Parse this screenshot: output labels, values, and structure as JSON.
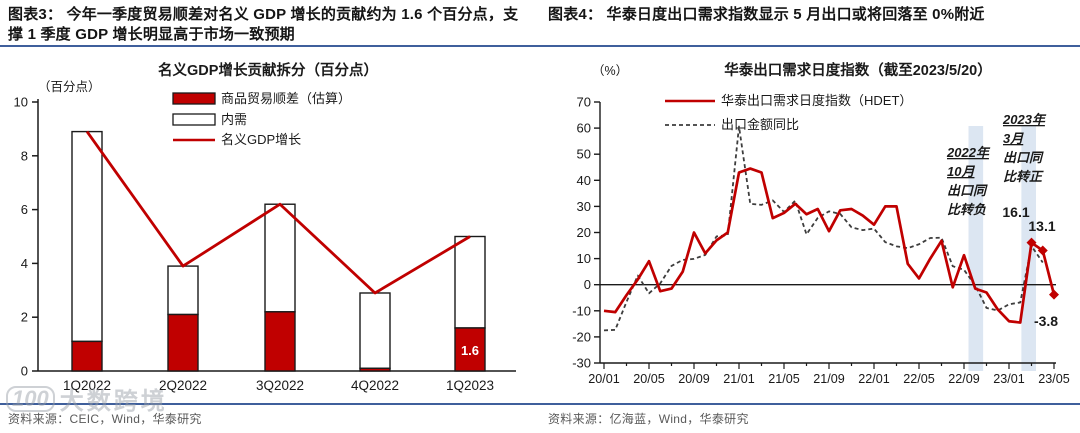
{
  "figure3": {
    "caption": "图表3：  今年一季度贸易顺差对名义 GDP 增长的贡献约为 1.6 个百分点，支撑 1 季度 GDP 增长明显高于市场一致预期",
    "source": "资料来源：CEIC，Wind，华泰研究"
  },
  "figure4": {
    "caption": "图表4：  华泰日度出口需求指数显示 5 月出口或将回落至 0%附近",
    "source": "资料来源：亿海蓝，Wind，华泰研究"
  },
  "watermark": {
    "logo": "100",
    "text": "大数跨境"
  },
  "colors": {
    "accent_red": "#c00000",
    "dark_red_label": "#a0342c",
    "rule_blue": "#3f5f9c",
    "band_blue": "#dce6f2",
    "dash_gray": "#3d3d3d",
    "axis_black": "#1a1a1a",
    "source_gray": "#5a5a5a"
  },
  "chart_data": [
    {
      "type": "bar",
      "stacked": true,
      "title": "名义GDP增长贡献拆分（百分点）",
      "unit_label": "（百分点）",
      "categories": [
        "1Q2022",
        "2Q2022",
        "3Q2022",
        "4Q2022",
        "1Q2023"
      ],
      "series": [
        {
          "name": "商品贸易顺差（估算）",
          "kind": "bar",
          "color": "#c00000",
          "values": [
            1.1,
            2.1,
            2.2,
            0.1,
            1.6
          ]
        },
        {
          "name": "内需",
          "kind": "bar",
          "color": "#ffffff",
          "values": [
            7.8,
            1.8,
            4.0,
            2.8,
            3.4
          ]
        },
        {
          "name": "名义GDP增长",
          "kind": "line",
          "color": "#c00000",
          "values": [
            8.9,
            3.9,
            6.2,
            2.9,
            5.0
          ]
        }
      ],
      "ylim": [
        0,
        10
      ],
      "yticks": [
        0,
        2,
        4,
        6,
        8,
        10
      ],
      "grid": false,
      "legend_position": "top",
      "bar_label": {
        "text": "1.6",
        "category_index": 4
      }
    },
    {
      "type": "line",
      "title": "华泰出口需求日度指数（截至2023/5/20）",
      "unit_label": "（%）",
      "x_start": "20/01",
      "x_end": "23/05",
      "x_ticks": [
        "20/01",
        "20/05",
        "20/09",
        "21/01",
        "21/05",
        "21/09",
        "22/01",
        "22/05",
        "22/09",
        "23/01",
        "23/05"
      ],
      "ylim": [
        -30,
        70
      ],
      "yticks": [
        70,
        60,
        50,
        40,
        30,
        20,
        10,
        0,
        -10,
        -20,
        -30
      ],
      "grid": false,
      "legend_position": "top",
      "series": [
        {
          "name": "华泰出口需求日度指数（HDET）",
          "kind": "line",
          "color": "#c00000",
          "marker_month_indexes": [
            38,
            39,
            40
          ],
          "values": [
            -10,
            -10.5,
            -4,
            2,
            9,
            -2.5,
            -1.5,
            5,
            20,
            12,
            17,
            20,
            43,
            44.5,
            43,
            25.5,
            27.5,
            31,
            27,
            29,
            20.5,
            28.5,
            29,
            26.5,
            23,
            30,
            30,
            8,
            2.4,
            10,
            16.8,
            -1,
            11.3,
            -1.5,
            -3,
            -9.5,
            -14,
            -14.5,
            16.1,
            13.1,
            -3.8
          ]
        },
        {
          "name": "出口金额同比",
          "kind": "dashed-line",
          "color": "#3d3d3d",
          "values": [
            -17.5,
            -17.3,
            -6.6,
            3.5,
            -3.3,
            0.5,
            7.2,
            9.5,
            9.9,
            11.4,
            18.5,
            19,
            60.6,
            31,
            30.6,
            32.3,
            27.9,
            32.2,
            19.3,
            25.6,
            28.1,
            27.1,
            22,
            20.9,
            21.5,
            16.3,
            14.7,
            14,
            15.5,
            17.9,
            18,
            7.1,
            5.7,
            -0.3,
            -8.9,
            -9.9,
            -7.5,
            -6.8,
            14.8,
            8.5,
            null
          ]
        }
      ],
      "highlight_bands": [
        {
          "from_month_index": 32.4,
          "to_month_index": 33.7
        },
        {
          "from_month_index": 37.1,
          "to_month_index": 38.4
        }
      ],
      "annotations": [
        {
          "lines": [
            "2022年",
            "10月",
            "出口同",
            "比转负"
          ],
          "underlined_lines": 2,
          "color": "#c00000"
        },
        {
          "lines": [
            "2023年",
            "3月",
            "出口同",
            "比转正"
          ],
          "underlined_lines": 2,
          "color": "#c00000"
        }
      ],
      "point_labels": [
        {
          "text": "16.1",
          "month_index": 38,
          "color": "#a0342c"
        },
        {
          "text": "13.1",
          "month_index": 39,
          "color": "#c00000"
        },
        {
          "text": "-3.8",
          "month_index": 40,
          "color": "#c00000"
        }
      ]
    }
  ]
}
